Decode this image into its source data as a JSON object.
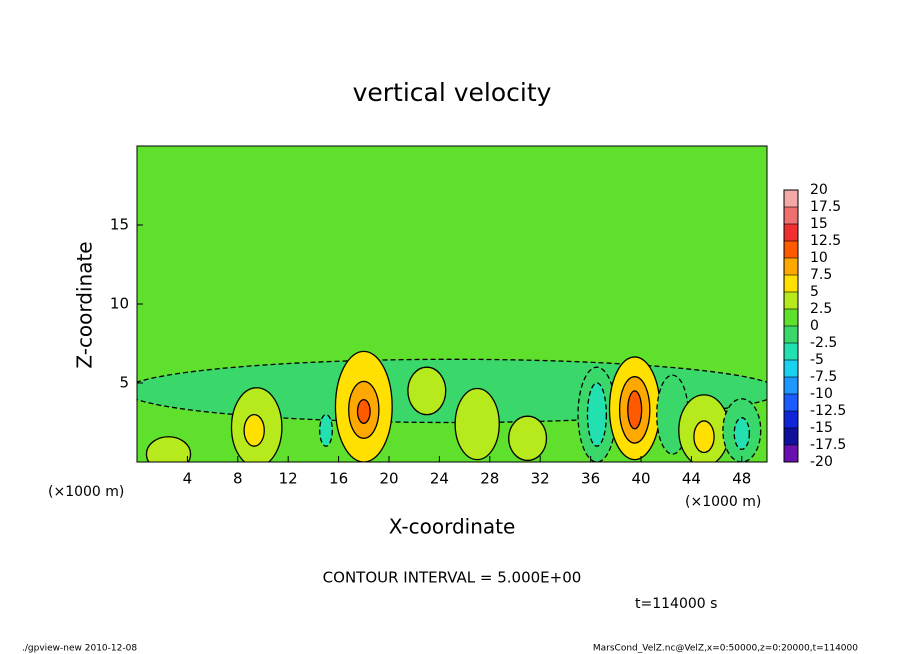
{
  "chart_data": {
    "type": "contour",
    "title": "vertical velocity",
    "xlabel": "X-coordinate",
    "ylabel": "Z-coordinate",
    "unit_label": "(×1000 m)",
    "xlim": [
      0,
      50
    ],
    "xticks": [
      4,
      8,
      12,
      16,
      20,
      24,
      28,
      32,
      36,
      40,
      44,
      48
    ],
    "ylim": [
      0,
      20
    ],
    "yticks": [
      5,
      10,
      15
    ],
    "background_value": 1,
    "colorbar": {
      "levels": [
        -20,
        -17.5,
        -15,
        -12.5,
        -10,
        -7.5,
        -5,
        -2.5,
        0,
        2.5,
        5,
        7.5,
        10,
        12.5,
        15,
        17.5,
        20
      ],
      "colors": [
        "#6a10b0",
        "#10109c",
        "#1024d8",
        "#1a5cff",
        "#1e98ff",
        "#18d2f0",
        "#22e0b0",
        "#3ad86a",
        "#5ee02c",
        "#b6ea1c",
        "#ffe000",
        "#ffa800",
        "#ff5a00",
        "#f03030",
        "#f07070",
        "#f4a8a8"
      ]
    },
    "features": [
      {
        "x": 25,
        "z": 4.5,
        "width": 52,
        "height": 4,
        "value": -1
      },
      {
        "x": 2.5,
        "z": 0.5,
        "width": 3.5,
        "height": 2.2,
        "value": 2.5
      },
      {
        "x": 9.5,
        "z": 2.2,
        "width": 4,
        "height": 5,
        "value": 2.5
      },
      {
        "x": 9.3,
        "z": 2,
        "width": 1.6,
        "height": 2,
        "value": 5
      },
      {
        "x": 15,
        "z": 2,
        "width": 1,
        "height": 2,
        "value": -5
      },
      {
        "x": 18,
        "z": 3.5,
        "width": 4.5,
        "height": 7,
        "value": 5
      },
      {
        "x": 18,
        "z": 3.3,
        "width": 2.4,
        "height": 3.6,
        "value": 7.5
      },
      {
        "x": 18,
        "z": 3.2,
        "width": 1,
        "height": 1.5,
        "value": 10
      },
      {
        "x": 23,
        "z": 4.5,
        "width": 3,
        "height": 3,
        "value": 2.5
      },
      {
        "x": 27,
        "z": 2.4,
        "width": 3.5,
        "height": 4.5,
        "value": 2.5
      },
      {
        "x": 31,
        "z": 1.5,
        "width": 3,
        "height": 2.8,
        "value": 2.5
      },
      {
        "x": 36.5,
        "z": 3,
        "width": 3,
        "height": 6,
        "value": -2.5
      },
      {
        "x": 36.5,
        "z": 3,
        "width": 1.5,
        "height": 4,
        "value": -5
      },
      {
        "x": 39.5,
        "z": 3.4,
        "width": 4,
        "height": 6.5,
        "value": 5
      },
      {
        "x": 39.5,
        "z": 3.3,
        "width": 2.4,
        "height": 4.2,
        "value": 7.5
      },
      {
        "x": 39.5,
        "z": 3.3,
        "width": 1.1,
        "height": 2.4,
        "value": 10
      },
      {
        "x": 42.5,
        "z": 3,
        "width": 2.5,
        "height": 5,
        "value": -2.5
      },
      {
        "x": 45,
        "z": 2,
        "width": 4,
        "height": 4.5,
        "value": 2.5
      },
      {
        "x": 45,
        "z": 1.6,
        "width": 1.6,
        "height": 2,
        "value": 5
      },
      {
        "x": 48,
        "z": 2,
        "width": 3,
        "height": 4,
        "value": -2.5
      },
      {
        "x": 48,
        "z": 1.8,
        "width": 1.2,
        "height": 2,
        "value": -5
      }
    ],
    "contour_label": "CONTOUR INTERVAL = 5.000E+00",
    "time_label": "t=114000 s",
    "footer_left": "./gpview-new  2010-12-08",
    "footer_right": "MarsCond_VelZ.nc@VelZ,x=0:50000,z=0:20000,t=114000"
  }
}
